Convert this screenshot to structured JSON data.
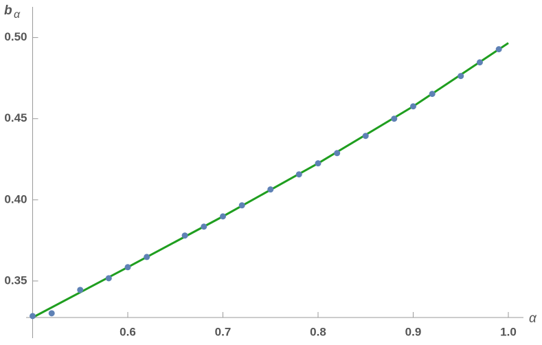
{
  "chart_data": {
    "type": "scatter",
    "ylabel_base": "b",
    "ylabel_subscript": "α",
    "xlabel": "α",
    "xlim": [
      0.5,
      1.0
    ],
    "ylim": [
      0.3275,
      0.51
    ],
    "xticks": [
      0.6,
      0.7,
      0.8,
      0.9,
      {
        "value": 1,
        "label": "1.0"
      }
    ],
    "yticks": [
      0.35,
      {
        "value": 0.4,
        "label": "0.40"
      },
      0.45,
      {
        "value": 0.5,
        "label": "0.50"
      }
    ],
    "grid": false,
    "series": [
      {
        "style": "markers",
        "color": "#5e81b5",
        "x": [
          0.5,
          0.52,
          0.55,
          0.58,
          0.6,
          0.62,
          0.66,
          0.68,
          0.7,
          0.72,
          0.75,
          0.78,
          0.8,
          0.82,
          0.85,
          0.88,
          0.9,
          0.92,
          0.95,
          0.97,
          0.99
        ],
        "values": [
          0.3284,
          0.3301,
          0.3445,
          0.3517,
          0.3585,
          0.3648,
          0.378,
          0.3835,
          0.3898,
          0.3966,
          0.4064,
          0.4157,
          0.4225,
          0.4288,
          0.4394,
          0.45,
          0.4576,
          0.4653,
          0.4763,
          0.4847,
          0.4928
        ]
      },
      {
        "style": "line",
        "color": "#1f9e1f",
        "x": [
          0.5,
          0.6,
          0.7,
          0.8,
          0.9,
          1.0
        ],
        "values": [
          0.3275,
          0.3585,
          0.3898,
          0.4225,
          0.4576,
          0.4966
        ]
      }
    ]
  }
}
